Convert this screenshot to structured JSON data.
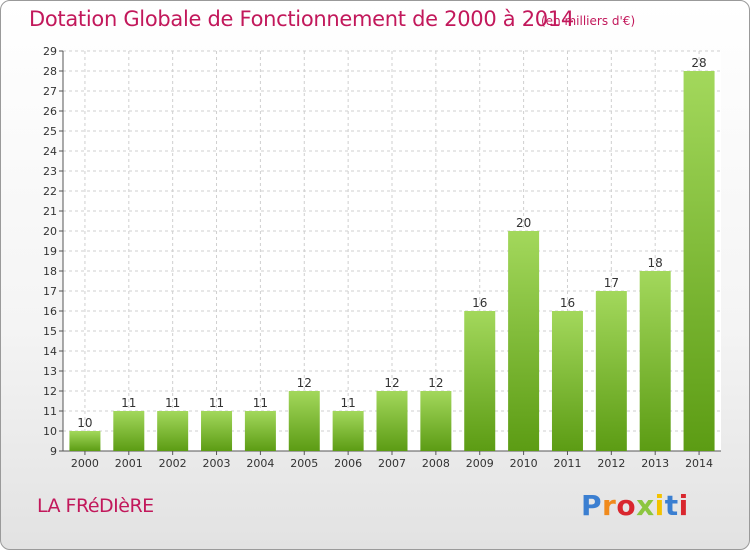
{
  "title": "Dotation Globale de Fonctionnement de 2000 à 2014",
  "subtitle": "(en milliers d'€)",
  "commune": "LA FRéDIèRE",
  "logo": {
    "text": "Proxiti",
    "colors": [
      "#3b7fd1",
      "#f08a1c",
      "#d9272e",
      "#8cc63f",
      "#f3c200",
      "#3b7fd1",
      "#d9272e"
    ]
  },
  "colors": {
    "title": "#c2185b",
    "bar_light": "#9fd356",
    "bar_dark": "#5a9a12",
    "grid": "#cfcfcf",
    "axis_text": "#333333"
  },
  "chart_data": {
    "type": "bar",
    "title": "Dotation Globale de Fonctionnement de 2000 à 2014",
    "subtitle": "(en milliers d'€)",
    "categories": [
      "2000",
      "2001",
      "2002",
      "2003",
      "2004",
      "2005",
      "2006",
      "2007",
      "2008",
      "2009",
      "2010",
      "2011",
      "2012",
      "2013",
      "2014"
    ],
    "values": [
      10,
      11,
      11,
      11,
      11,
      12,
      11,
      12,
      12,
      16,
      20,
      16,
      17,
      18,
      28
    ],
    "xlabel": "",
    "ylabel": "",
    "ylim": [
      9,
      29
    ],
    "yticks": [
      9,
      10,
      11,
      12,
      13,
      14,
      15,
      16,
      17,
      18,
      19,
      20,
      21,
      22,
      23,
      24,
      25,
      26,
      27,
      28,
      29
    ],
    "grid": true
  }
}
